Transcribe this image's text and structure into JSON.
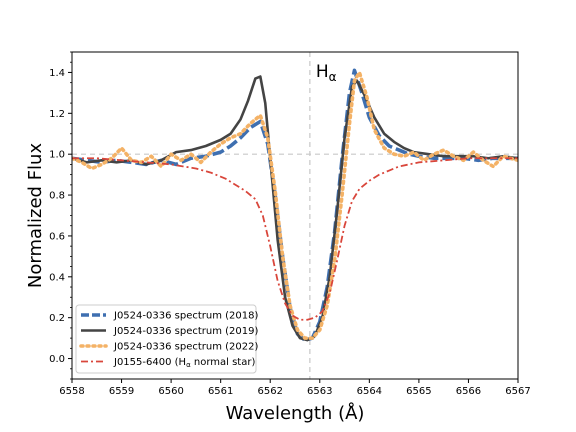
{
  "chart_data": {
    "type": "line",
    "title": "",
    "xlabel": "Wavelength (Å)",
    "ylabel": "Normalized Flux",
    "xlim": [
      6558,
      6567
    ],
    "ylim": [
      -0.1,
      1.5
    ],
    "xticks": [
      6558,
      6559,
      6560,
      6561,
      6562,
      6563,
      6564,
      6565,
      6566,
      6567
    ],
    "yticks": [
      0.0,
      0.2,
      0.4,
      0.6,
      0.8,
      1.0,
      1.2,
      1.4
    ],
    "ytick_labels": [
      "0.0",
      "0.2",
      "0.4",
      "0.6",
      "0.8",
      "1.0",
      "1.2",
      "1.4"
    ],
    "grid": false,
    "legend_position": "lower-left",
    "reference_lines": [
      {
        "orientation": "horizontal",
        "value": 1.0,
        "style": "dashed",
        "color": "#c8c8c8"
      },
      {
        "orientation": "vertical",
        "value": 6562.8,
        "style": "dashed",
        "color": "#c8c8c8",
        "label": "Hα"
      }
    ],
    "series": [
      {
        "name": "J0524-0336 spectrum (2018)",
        "color": "#3e6fb0",
        "style": "dashed",
        "x": [
          6558.0,
          6558.3,
          6558.6,
          6558.9,
          6559.2,
          6559.5,
          6559.8,
          6560.1,
          6560.4,
          6560.7,
          6561.0,
          6561.2,
          6561.4,
          6561.6,
          6561.8,
          6561.95,
          6562.1,
          6562.25,
          6562.4,
          6562.55,
          6562.7,
          6562.85,
          6563.0,
          6563.15,
          6563.3,
          6563.45,
          6563.6,
          6563.7,
          6563.85,
          6564.0,
          6564.2,
          6564.4,
          6564.6,
          6564.8,
          6565.0,
          6565.3,
          6565.6,
          6565.9,
          6566.2,
          6566.5,
          6566.8,
          6567.0
        ],
        "y": [
          0.98,
          0.97,
          0.96,
          0.97,
          0.96,
          0.95,
          0.97,
          0.95,
          0.98,
          0.99,
          1.01,
          1.04,
          1.08,
          1.13,
          1.16,
          1.05,
          0.8,
          0.5,
          0.25,
          0.12,
          0.09,
          0.1,
          0.18,
          0.35,
          0.62,
          0.98,
          1.3,
          1.41,
          1.3,
          1.18,
          1.09,
          1.04,
          1.02,
          1.0,
          0.99,
          0.98,
          0.98,
          0.98,
          0.97,
          0.98,
          0.98,
          0.98
        ]
      },
      {
        "name": "J0524-0336 spectrum (2019)",
        "color": "#444444",
        "style": "solid",
        "x": [
          6558.0,
          6558.3,
          6558.6,
          6558.9,
          6559.2,
          6559.5,
          6559.8,
          6560.1,
          6560.4,
          6560.7,
          6561.0,
          6561.2,
          6561.4,
          6561.55,
          6561.7,
          6561.8,
          6561.9,
          6562.0,
          6562.15,
          6562.3,
          6562.45,
          6562.6,
          6562.75,
          6562.9,
          6563.05,
          6563.2,
          6563.35,
          6563.5,
          6563.65,
          6563.75,
          6563.9,
          6564.1,
          6564.3,
          6564.5,
          6564.7,
          6564.9,
          6565.2,
          6565.5,
          6565.8,
          6566.1,
          6566.4,
          6566.7,
          6567.0
        ],
        "y": [
          0.98,
          0.96,
          0.97,
          0.96,
          0.97,
          0.95,
          0.97,
          1.01,
          1.02,
          1.04,
          1.07,
          1.1,
          1.17,
          1.26,
          1.37,
          1.38,
          1.25,
          0.98,
          0.58,
          0.3,
          0.16,
          0.1,
          0.09,
          0.11,
          0.2,
          0.4,
          0.72,
          1.08,
          1.33,
          1.36,
          1.29,
          1.18,
          1.1,
          1.06,
          1.03,
          1.01,
          1.0,
          0.99,
          0.99,
          0.99,
          0.98,
          0.99,
          0.98
        ]
      },
      {
        "name": "J0524-0336 spectrum (2022)",
        "color": "#f4b266",
        "style": "dotted",
        "x": [
          6558.0,
          6558.2,
          6558.4,
          6558.6,
          6558.8,
          6559.0,
          6559.2,
          6559.4,
          6559.6,
          6559.8,
          6560.0,
          6560.2,
          6560.4,
          6560.6,
          6560.8,
          6561.0,
          6561.2,
          6561.4,
          6561.6,
          6561.8,
          6561.95,
          6562.1,
          6562.25,
          6562.4,
          6562.55,
          6562.7,
          6562.85,
          6563.0,
          6563.15,
          6563.3,
          6563.45,
          6563.6,
          6563.7,
          6563.8,
          6563.95,
          6564.1,
          6564.3,
          6564.5,
          6564.7,
          6564.9,
          6565.1,
          6565.3,
          6565.5,
          6565.7,
          6565.9,
          6566.1,
          6566.3,
          6566.5,
          6566.7,
          6567.0
        ],
        "y": [
          0.98,
          0.96,
          0.93,
          0.95,
          0.98,
          1.03,
          0.97,
          0.96,
          0.99,
          0.94,
          1.0,
          0.97,
          1.0,
          0.96,
          1.01,
          1.05,
          1.08,
          1.1,
          1.15,
          1.19,
          1.08,
          0.82,
          0.5,
          0.26,
          0.14,
          0.1,
          0.1,
          0.14,
          0.26,
          0.48,
          0.8,
          1.15,
          1.36,
          1.4,
          1.28,
          1.12,
          1.03,
          1.0,
          0.99,
          1.01,
          0.97,
          1.0,
          1.02,
          0.99,
          0.97,
          1.01,
          0.97,
          0.94,
          0.99,
          0.97
        ]
      },
      {
        "name": "J0155-6400 (Hα normal star)",
        "color": "#d9463b",
        "style": "dashdot",
        "x": [
          6558.0,
          6558.5,
          6559.0,
          6559.5,
          6560.0,
          6560.5,
          6560.8,
          6561.1,
          6561.3,
          6561.5,
          6561.7,
          6561.85,
          6562.0,
          6562.15,
          6562.3,
          6562.45,
          6562.6,
          6562.75,
          6562.9,
          6563.05,
          6563.2,
          6563.35,
          6563.5,
          6563.65,
          6563.8,
          6564.0,
          6564.2,
          6564.4,
          6564.6,
          6564.8,
          6565.0,
          6565.5,
          6566.0,
          6566.5,
          6567.0
        ],
        "y": [
          0.98,
          0.98,
          0.97,
          0.96,
          0.95,
          0.93,
          0.91,
          0.88,
          0.85,
          0.82,
          0.78,
          0.7,
          0.55,
          0.38,
          0.27,
          0.21,
          0.19,
          0.19,
          0.2,
          0.23,
          0.32,
          0.48,
          0.65,
          0.77,
          0.83,
          0.87,
          0.9,
          0.92,
          0.94,
          0.95,
          0.96,
          0.97,
          0.98,
          0.98,
          0.98
        ]
      }
    ]
  }
}
